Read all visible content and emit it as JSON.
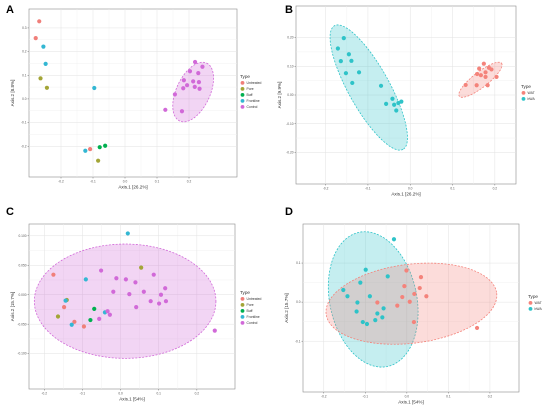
{
  "colors": {
    "Untreated": "#f07f7a",
    "Pore": "#a3a537",
    "Buff": "#00b050",
    "Frontline": "#33b7d3",
    "Control": "#d169d8",
    "WAT": "#f4837b",
    "bWA": "#2ec3c8"
  },
  "chart_data": [
    {
      "panel": "A",
      "type": "scatter",
      "xlabel": "Axis.1 [26.2%]",
      "ylabel": "Axis.2 [8.8%]",
      "xlim": [
        -0.3,
        0.35
      ],
      "ylim": [
        -0.33,
        0.38
      ],
      "xticks": [
        {
          "v": -0.2,
          "t": "-0.2"
        },
        {
          "v": -0.1,
          "t": "-0.1"
        },
        {
          "v": 0.0,
          "t": "0.0"
        },
        {
          "v": 0.1,
          "t": "0.1"
        },
        {
          "v": 0.2,
          "t": "0.2"
        }
      ],
      "yticks": [
        {
          "v": -0.2,
          "t": "-0.2"
        },
        {
          "v": -0.1,
          "t": "-0.1"
        },
        {
          "v": 0.0,
          "t": "0.0"
        },
        {
          "v": 0.1,
          "t": "0.1"
        },
        {
          "v": 0.2,
          "t": "0.2"
        },
        {
          "v": 0.3,
          "t": "0.3"
        }
      ],
      "legend_title": "Type",
      "legend": [
        "Untreated",
        "Pore",
        "Buff",
        "Frontline",
        "Control"
      ],
      "ellipses": [
        {
          "group": "Control",
          "cx": 0.213,
          "cy": 0.029,
          "rx": 0.126,
          "ry": 0.055,
          "angle": -65
        }
      ],
      "series": [
        {
          "name": "Untreated",
          "x": [
            -0.268,
            -0.279,
            -0.109
          ],
          "y": [
            0.328,
            0.257,
            -0.212
          ]
        },
        {
          "name": "Pore",
          "x": [
            -0.264,
            -0.244,
            -0.084
          ],
          "y": [
            0.087,
            0.047,
            -0.261
          ]
        },
        {
          "name": "Buff",
          "x": [
            -0.079,
            -0.062
          ],
          "y": [
            -0.204,
            -0.198
          ]
        },
        {
          "name": "Frontline",
          "x": [
            -0.255,
            -0.248,
            -0.096,
            -0.124
          ],
          "y": [
            0.221,
            0.148,
            0.046,
            -0.219
          ]
        },
        {
          "name": "Control",
          "x": [
            0.219,
            0.242,
            0.203,
            0.229,
            0.184,
            0.213,
            0.231,
            0.194,
            0.218,
            0.233,
            0.182,
            0.156,
            0.126,
            0.178
          ],
          "y": [
            0.156,
            0.136,
            0.117,
            0.109,
            0.079,
            0.074,
            0.071,
            0.058,
            0.051,
            0.043,
            0.045,
            0.019,
            -0.046,
            -0.052
          ]
        }
      ]
    },
    {
      "panel": "B",
      "type": "scatter",
      "xlabel": "Axis.1 [26.2%]",
      "ylabel": "Axis.2 [9.9%]",
      "xlim": [
        -0.27,
        0.25
      ],
      "ylim": [
        -0.31,
        0.31
      ],
      "xticks": [
        {
          "v": -0.2,
          "t": "-0.2"
        },
        {
          "v": -0.1,
          "t": "-0.1"
        },
        {
          "v": 0.0,
          "t": "0.0"
        },
        {
          "v": 0.1,
          "t": "0.1"
        },
        {
          "v": 0.2,
          "t": "0.2"
        }
      ],
      "yticks": [
        {
          "v": -0.2,
          "t": "-0.20"
        },
        {
          "v": -0.1,
          "t": "-0.10"
        },
        {
          "v": 0.0,
          "t": "0.00"
        },
        {
          "v": 0.1,
          "t": "0.10"
        },
        {
          "v": 0.2,
          "t": "0.20"
        }
      ],
      "legend_title": "Type",
      "legend": [
        "WAT",
        "bWA"
      ],
      "ellipses": [
        {
          "group": "bWA",
          "cx": -0.098,
          "cy": 0.026,
          "rx": 0.218,
          "ry": 0.052,
          "angle": 61
        },
        {
          "group": "WAT",
          "cx": 0.166,
          "cy": 0.053,
          "rx": 0.071,
          "ry": 0.022,
          "angle": -38
        }
      ],
      "series": [
        {
          "name": "bWA",
          "x": [
            -0.157,
            -0.171,
            -0.145,
            -0.164,
            -0.139,
            -0.121,
            -0.152,
            -0.137,
            -0.069,
            -0.057,
            -0.038,
            -0.028,
            -0.021,
            -0.033,
            -0.042
          ],
          "y": [
            0.198,
            0.162,
            0.142,
            0.118,
            0.119,
            0.079,
            0.076,
            0.042,
            0.032,
            -0.031,
            -0.034,
            -0.028,
            -0.023,
            -0.054,
            -0.013
          ]
        },
        {
          "name": "WAT",
          "x": [
            0.174,
            0.186,
            0.163,
            0.192,
            0.178,
            0.158,
            0.167,
            0.178,
            0.204,
            0.131,
            0.157,
            0.183
          ],
          "y": [
            0.109,
            0.095,
            0.092,
            0.089,
            0.079,
            0.073,
            0.069,
            0.063,
            0.063,
            0.035,
            0.034,
            0.034
          ]
        }
      ]
    },
    {
      "panel": "C",
      "type": "scatter",
      "xlabel": "Axis.1 [54%]",
      "ylabel": "Axis.2 [15.7%]",
      "xlim": [
        -0.24,
        0.3
      ],
      "ylim": [
        -0.16,
        0.12
      ],
      "xticks": [
        {
          "v": -0.2,
          "t": "-0.2"
        },
        {
          "v": -0.1,
          "t": "-0.1"
        },
        {
          "v": 0.0,
          "t": "0.0"
        },
        {
          "v": 0.1,
          "t": "0.1"
        },
        {
          "v": 0.2,
          "t": "0.2"
        }
      ],
      "yticks": [
        {
          "v": -0.1,
          "t": "-0.100"
        },
        {
          "v": -0.05,
          "t": "-0.050"
        },
        {
          "v": 0.0,
          "t": "0.000"
        },
        {
          "v": 0.05,
          "t": "0.050"
        },
        {
          "v": 0.1,
          "t": "0.100"
        }
      ],
      "legend_title": "Type",
      "legend": [
        "Untreated",
        "Pore",
        "Buff",
        "Frontline",
        "Control"
      ],
      "ellipses": [
        {
          "group": "Control",
          "cx": 0.012,
          "cy": -0.011,
          "rx": 0.238,
          "ry": 0.097,
          "angle": 0
        }
      ],
      "series": [
        {
          "name": "Untreated",
          "x": [
            -0.176,
            -0.148,
            -0.121,
            -0.096
          ],
          "y": [
            0.034,
            -0.021,
            -0.046,
            -0.054
          ]
        },
        {
          "name": "Pore",
          "x": [
            -0.164,
            -0.141,
            0.054
          ],
          "y": [
            -0.037,
            -0.009,
            0.046
          ]
        },
        {
          "name": "Buff",
          "x": [
            -0.069,
            -0.079
          ],
          "y": [
            -0.024,
            -0.043
          ]
        },
        {
          "name": "Frontline",
          "x": [
            0.019,
            -0.091,
            -0.144,
            -0.128,
            -0.041
          ],
          "y": [
            0.104,
            0.026,
            -0.01,
            -0.051,
            -0.03
          ]
        },
        {
          "name": "Control",
          "x": [
            -0.051,
            -0.011,
            0.014,
            -0.019,
            0.039,
            0.087,
            0.117,
            0.061,
            0.023,
            0.106,
            -0.034,
            0.041,
            0.119,
            0.079,
            0.101,
            -0.028,
            -0.056,
            0.247
          ],
          "y": [
            0.041,
            0.028,
            0.026,
            0.005,
            0.021,
            0.034,
            0.011,
            0.005,
            0.001,
            0.0,
            -0.028,
            -0.021,
            -0.011,
            -0.011,
            -0.015,
            -0.034,
            -0.041,
            -0.061
          ]
        }
      ]
    },
    {
      "panel": "D",
      "type": "scatter",
      "xlabel": "Axis.1 [54%]",
      "ylabel": "Axis.2 [15.7%]",
      "xlim": [
        -0.25,
        0.27
      ],
      "ylim": [
        -0.23,
        0.2
      ],
      "xticks": [
        {
          "v": -0.2,
          "t": "-0.2"
        },
        {
          "v": -0.1,
          "t": "-0.1"
        },
        {
          "v": 0.0,
          "t": "0.0"
        },
        {
          "v": 0.1,
          "t": "0.1"
        },
        {
          "v": 0.2,
          "t": "0.2"
        }
      ],
      "yticks": [
        {
          "v": -0.1,
          "t": "-0.1"
        },
        {
          "v": 0.0,
          "t": "0.0"
        },
        {
          "v": 0.1,
          "t": "0.1"
        }
      ],
      "legend_title": "Type",
      "legend": [
        "WAT",
        "bWA"
      ],
      "ellipses": [
        {
          "group": "bWA",
          "cx": -0.081,
          "cy": 0.007,
          "rx": 0.105,
          "ry": 0.175,
          "angle": -12
        },
        {
          "group": "WAT",
          "cx": 0.011,
          "cy": -0.004,
          "rx": 0.207,
          "ry": 0.101,
          "angle": -7
        }
      ],
      "series": [
        {
          "name": "bWA",
          "x": [
            -0.031,
            -0.099,
            -0.046,
            -0.112,
            -0.153,
            -0.089,
            -0.143,
            -0.119,
            -0.056,
            -0.121,
            -0.071,
            -0.106,
            -0.096,
            -0.076,
            -0.059
          ],
          "y": [
            0.161,
            0.083,
            0.066,
            0.05,
            0.031,
            0.015,
            0.015,
            -0.001,
            -0.016,
            -0.024,
            -0.029,
            -0.051,
            -0.056,
            -0.046,
            -0.039
          ]
        },
        {
          "name": "WAT",
          "x": [
            -0.001,
            0.034,
            -0.006,
            0.031,
            0.018,
            -0.011,
            -0.023,
            -0.071,
            0.047,
            0.007,
            0.017,
            0.169
          ],
          "y": [
            0.081,
            0.064,
            0.041,
            0.036,
            0.021,
            0.013,
            -0.009,
            -0.001,
            0.015,
            0.001,
            -0.051,
            -0.066
          ]
        }
      ]
    }
  ]
}
